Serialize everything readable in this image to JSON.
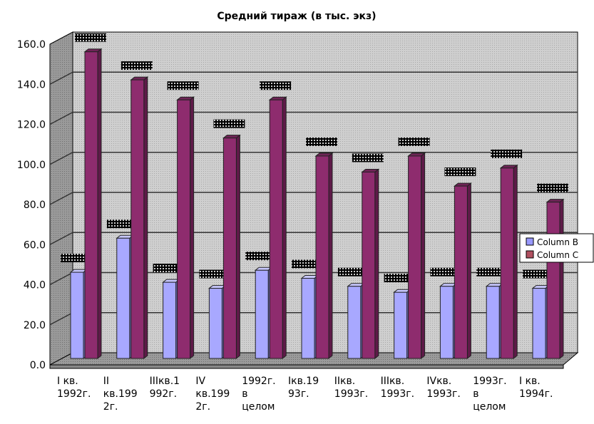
{
  "chart_data": {
    "type": "bar",
    "title": "Средний тираж (в тыс. экз)",
    "categories": [
      [
        "I кв.",
        "1992г."
      ],
      [
        "II",
        "кв.199",
        "2г."
      ],
      [
        "IIIкв.1",
        "992г."
      ],
      [
        "IV",
        "кв.199",
        "2г."
      ],
      [
        "1992г.",
        "в",
        "целом"
      ],
      [
        "Iкв.19",
        "93г."
      ],
      [
        "IIкв.",
        "1993г."
      ],
      [
        "IIIкв.",
        "1993г."
      ],
      [
        "IVкв.",
        "1993г."
      ],
      [
        "1993г.",
        "в",
        "целом"
      ],
      [
        "I кв.",
        "1994г."
      ]
    ],
    "series": [
      {
        "name": "Column B",
        "color": "#9999ff",
        "values": [
          43,
          60,
          38,
          35,
          44,
          40,
          36,
          33,
          36,
          36,
          35
        ]
      },
      {
        "name": "Column C",
        "color": "#993366",
        "values": [
          153,
          139,
          129,
          110,
          129,
          101,
          93,
          101,
          86,
          95,
          78
        ]
      }
    ],
    "ylim": [
      0,
      160
    ],
    "yticks": [
      "0.0",
      "20.0",
      "40.0",
      "60.0",
      "80.0",
      "100.0",
      "120.0",
      "140.0",
      "160.0"
    ],
    "grid": true,
    "legend": "right",
    "data_labels": "obscured"
  }
}
